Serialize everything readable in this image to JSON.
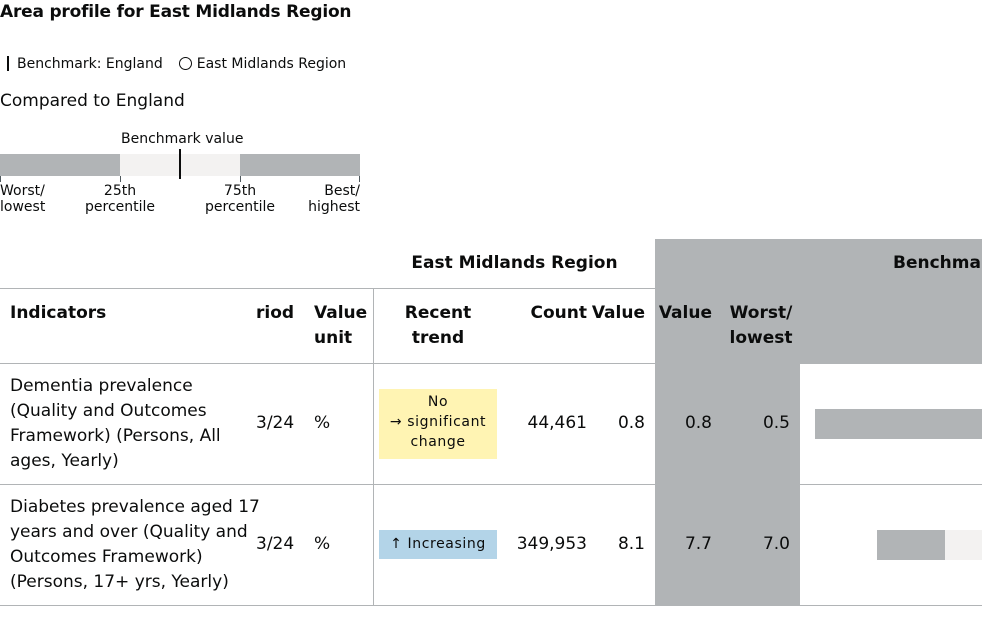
{
  "page": {
    "title": "Area profile for East Midlands Region"
  },
  "legend": {
    "benchmark": "Benchmark: England",
    "area": "East Midlands Region"
  },
  "compared_to": "Compared to England",
  "key": {
    "benchmark_value": "Benchmark value",
    "worst_1": "Worst/",
    "worst_2": "lowest",
    "p25_1": "25th",
    "p25_2": "percentile",
    "p75_1": "75th",
    "p75_2": "percentile",
    "best_1": "Best/",
    "best_2": "highest"
  },
  "table": {
    "group_area": "East Midlands Region",
    "group_benchmark": "Benchmar",
    "headers": {
      "indicators": "Indicators",
      "period": "riod",
      "value_unit_1": "Value",
      "value_unit_2": "unit",
      "recent_trend_1": "Recent",
      "recent_trend_2": "trend",
      "count": "Count",
      "value": "Value",
      "bench_value": "Value",
      "worst_1": "Worst/",
      "worst_2": "lowest"
    },
    "rows": [
      {
        "indicator": [
          "Dementia prevalence",
          "(Quality and Outcomes",
          "Framework) (Persons, All",
          "ages, Yearly)"
        ],
        "period": "3/24",
        "unit": "%",
        "trend": [
          "No",
          "→ significant",
          "change"
        ],
        "count": "44,461",
        "value": "0.8",
        "bench_value": "0.8",
        "worst": "0.5"
      },
      {
        "indicator": [
          "Diabetes prevalence aged 17",
          "years and over (Quality and",
          "Outcomes Framework)",
          "(Persons, 17+ yrs, Yearly)"
        ],
        "period": "3/24",
        "unit": "%",
        "trend": [
          "↑ Increasing"
        ],
        "count": "349,953",
        "value": "8.1",
        "bench_value": "7.7",
        "worst": "7.0"
      }
    ]
  },
  "colors": {
    "grey": "#b1b4b6",
    "light": "#f3f2f1",
    "no_change": "#fff4b3",
    "increasing": "#b3d4e8"
  }
}
